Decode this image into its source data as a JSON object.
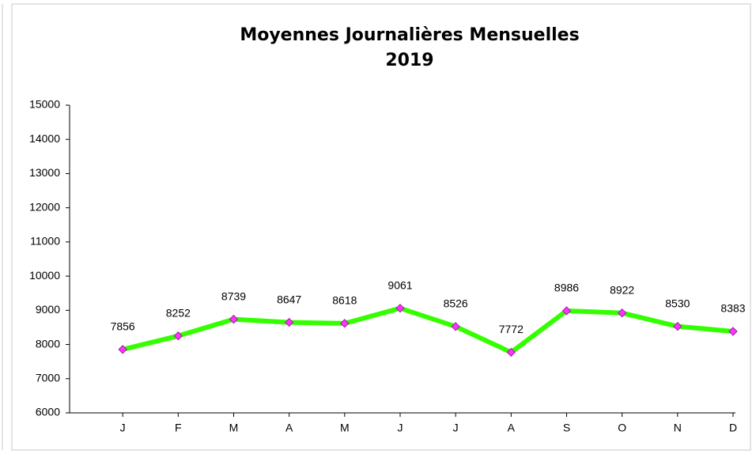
{
  "chart_data": {
    "type": "line",
    "title": "Moyennes Journalières Mensuelles",
    "subtitle": "2019",
    "categories": [
      "J",
      "F",
      "M",
      "A",
      "M",
      "J",
      "J",
      "A",
      "S",
      "O",
      "N",
      "D"
    ],
    "series": [
      {
        "color": "#33ff00",
        "marker_color": "#ff33ff",
        "values": [
          7856,
          8252,
          8739,
          8647,
          8618,
          9061,
          8526,
          7772,
          8986,
          8922,
          8530,
          8383
        ]
      }
    ],
    "ylim": [
      6000,
      15000
    ],
    "yticks": [
      6000,
      7000,
      8000,
      9000,
      10000,
      11000,
      12000,
      13000,
      14000,
      15000
    ],
    "grid": false
  }
}
